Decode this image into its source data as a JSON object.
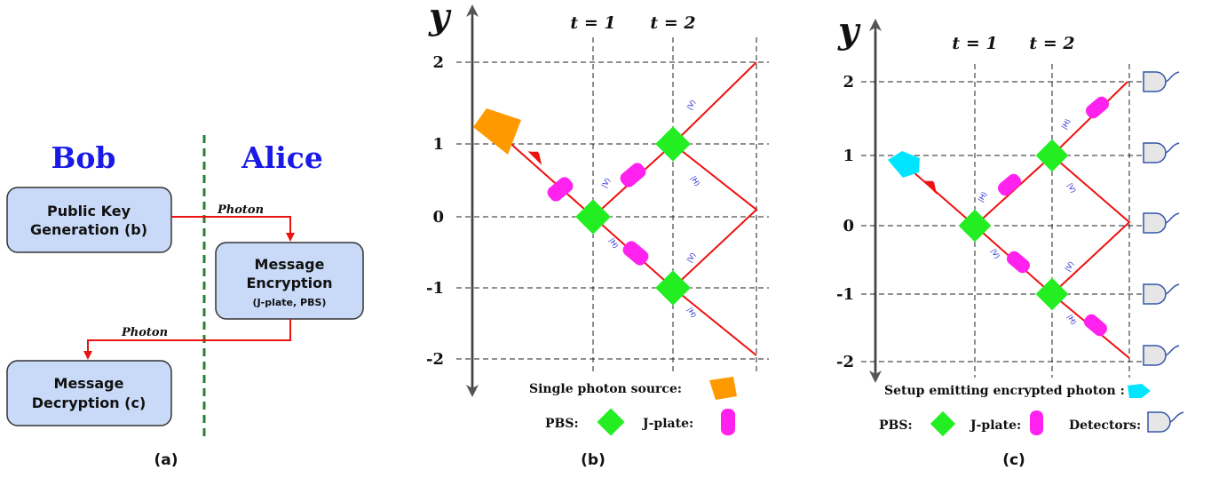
{
  "panel_a": {
    "bob_label": "Bob",
    "alice_label": "Alice",
    "box1": {
      "line1": "Public Key",
      "line2": "Generation (b)"
    },
    "box2": {
      "line1": "Message",
      "line2": "Encryption",
      "line3": "(J-plate, PBS)"
    },
    "box3": {
      "line1": "Message",
      "line2": "Decryption (c)"
    },
    "photon1": "Photon",
    "photon2": "Photon",
    "caption": "(a)"
  },
  "panel_b": {
    "y_label": "y",
    "t_labels": [
      "t = 1",
      "t = 2"
    ],
    "y_ticks": [
      "2",
      "1",
      "0",
      "-1",
      "-2"
    ],
    "states": [
      "|V⟩",
      "|V⟩",
      "|H⟩",
      "|H⟩",
      "|V⟩",
      "|H⟩"
    ],
    "legend_source": "Single photon source:",
    "legend_pbs": "PBS:",
    "legend_jplate": "J-plate:",
    "caption": "(b)"
  },
  "panel_c": {
    "y_label": "y",
    "t_labels": [
      "t = 1",
      "t = 2"
    ],
    "y_ticks": [
      "2",
      "1",
      "0",
      "-1",
      "-2"
    ],
    "states": [
      "|H⟩",
      "|V⟩",
      "|H⟩",
      "|V⟩",
      "|V⟩",
      "|H⟩"
    ],
    "legend_setup": "Setup emitting encrypted photon :",
    "legend_pbs": "PBS:",
    "legend_jplate": "J-plate:",
    "legend_detectors": "Detectors:",
    "caption": "(c)"
  },
  "colors": {
    "beam": "#ee1111",
    "pbs": "#22ee22",
    "jplate": "#ff22ee",
    "source": "#ff9900",
    "encrypted_source": "#00e5ff",
    "box_fill": "#c9daf8",
    "names": "#1a1ae6",
    "divider": "#2e7d32"
  }
}
